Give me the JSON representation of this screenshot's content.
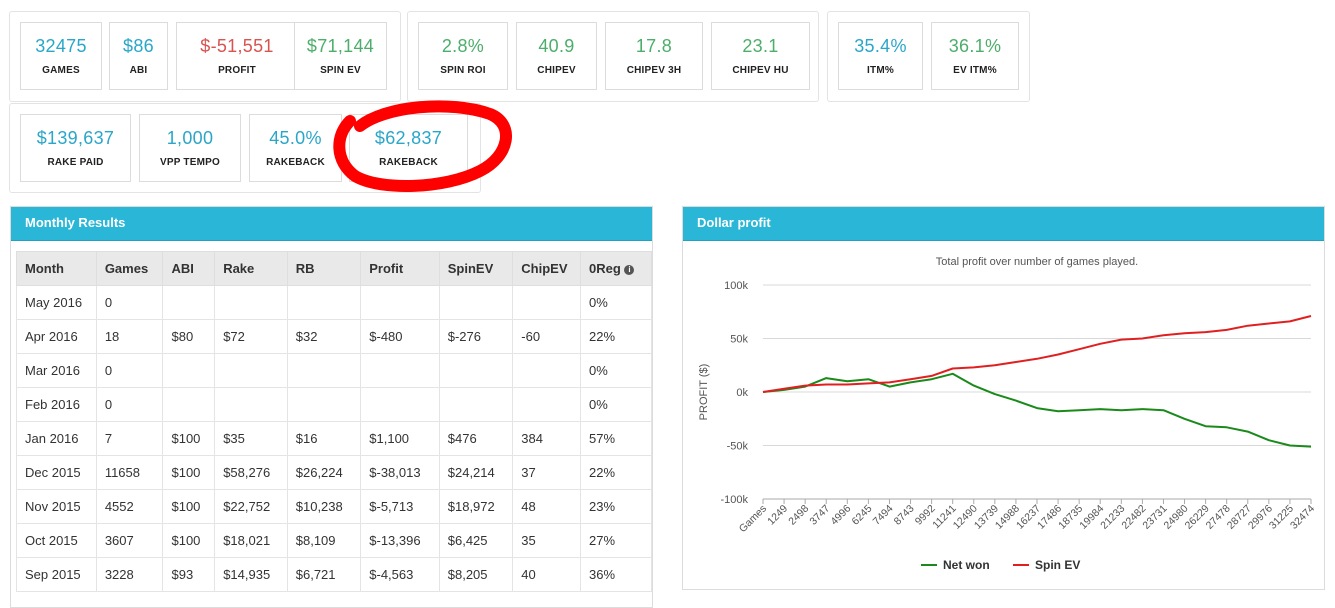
{
  "row1_group1": [
    {
      "value": "32475",
      "label": "GAMES",
      "tone": "blue"
    },
    {
      "value": "$86",
      "label": "ABI",
      "tone": "blue"
    },
    {
      "value": "$-51,551",
      "label": "PROFIT",
      "tone": "red"
    },
    {
      "value": "$71,144",
      "label": "SPIN EV",
      "tone": "green"
    }
  ],
  "row1_group2": [
    {
      "value": "2.8%",
      "label": "SPIN ROI",
      "tone": "green"
    },
    {
      "value": "40.9",
      "label": "CHIPEV",
      "tone": "green"
    },
    {
      "value": "17.8",
      "label": "CHIPEV 3H",
      "tone": "green"
    },
    {
      "value": "23.1",
      "label": "CHIPEV HU",
      "tone": "green"
    }
  ],
  "row1_group3": [
    {
      "value": "35.4%",
      "label": "ITM%",
      "tone": "blue"
    },
    {
      "value": "36.1%",
      "label": "EV ITM%",
      "tone": "green"
    }
  ],
  "row2_group": [
    {
      "value": "$139,637",
      "label": "RAKE PAID",
      "tone": "blue"
    },
    {
      "value": "1,000",
      "label": "VPP TEMPO",
      "tone": "blue"
    },
    {
      "value": "45.0%",
      "label": "RAKEBACK",
      "tone": "blue"
    },
    {
      "value": "$62,837",
      "label": "RAKEBACK",
      "tone": "blue"
    }
  ],
  "monthly": {
    "title": "Monthly Results",
    "columns": [
      "Month",
      "Games",
      "ABI",
      "Rake",
      "RB",
      "Profit",
      "SpinEV",
      "ChipEV",
      "0Reg"
    ],
    "info_glyph": "i",
    "rows": [
      [
        "May 2016",
        "0",
        "",
        "",
        "",
        "",
        "",
        "",
        "0%"
      ],
      [
        "Apr 2016",
        "18",
        "$80",
        "$72",
        "$32",
        "$-480",
        "$-276",
        "-60",
        "22%"
      ],
      [
        "Mar 2016",
        "0",
        "",
        "",
        "",
        "",
        "",
        "",
        "0%"
      ],
      [
        "Feb 2016",
        "0",
        "",
        "",
        "",
        "",
        "",
        "",
        "0%"
      ],
      [
        "Jan 2016",
        "7",
        "$100",
        "$35",
        "$16",
        "$1,100",
        "$476",
        "384",
        "57%"
      ],
      [
        "Dec 2015",
        "11658",
        "$100",
        "$58,276",
        "$26,224",
        "$-38,013",
        "$24,214",
        "37",
        "22%"
      ],
      [
        "Nov 2015",
        "4552",
        "$100",
        "$22,752",
        "$10,238",
        "$-5,713",
        "$18,972",
        "48",
        "23%"
      ],
      [
        "Oct 2015",
        "3607",
        "$100",
        "$18,021",
        "$8,109",
        "$-13,396",
        "$6,425",
        "35",
        "27%"
      ],
      [
        "Sep 2015",
        "3228",
        "$93",
        "$14,935",
        "$6,721",
        "$-4,563",
        "$8,205",
        "40",
        "36%"
      ]
    ]
  },
  "profit_panel": {
    "title": "Dollar profit"
  },
  "chart_data": {
    "type": "line",
    "subtitle": "Total profit over number of games played.",
    "ylabel": "PROFIT ($)",
    "ylim": [
      -100000,
      100000
    ],
    "yticks": [
      100000,
      50000,
      0,
      -50000,
      -100000
    ],
    "ytick_labels": [
      "100k",
      "50k",
      "0k",
      "-50k",
      "-100k"
    ],
    "xtick_labels": [
      "Games",
      "1249",
      "2498",
      "3747",
      "4996",
      "6245",
      "7494",
      "8743",
      "9992",
      "11241",
      "12490",
      "13739",
      "14988",
      "16237",
      "17486",
      "18735",
      "19984",
      "21233",
      "22482",
      "23731",
      "24980",
      "26229",
      "27478",
      "28727",
      "29976",
      "31225",
      "32474"
    ],
    "x": [
      0,
      1249,
      2498,
      3747,
      4996,
      6245,
      7494,
      8743,
      9992,
      11241,
      12490,
      13739,
      14988,
      16237,
      17486,
      18735,
      19984,
      21233,
      22482,
      23731,
      24980,
      26229,
      27478,
      28727,
      29976,
      31225,
      32474
    ],
    "series": [
      {
        "name": "Net won",
        "color": "#1a8a1a",
        "values": [
          0,
          2000,
          5000,
          13000,
          10000,
          12000,
          5000,
          9000,
          12000,
          17000,
          6000,
          -2000,
          -8000,
          -15000,
          -18000,
          -17000,
          -16000,
          -17000,
          -16000,
          -17000,
          -25000,
          -32000,
          -33000,
          -37000,
          -45000,
          -50000,
          -51000
        ]
      },
      {
        "name": "Spin EV",
        "color": "#e02020",
        "values": [
          0,
          3000,
          6000,
          7000,
          7000,
          8000,
          9000,
          12000,
          15000,
          22000,
          23000,
          25000,
          28000,
          31000,
          35000,
          40000,
          45000,
          49000,
          50000,
          53000,
          55000,
          56000,
          58000,
          62000,
          64000,
          66000,
          71000
        ]
      }
    ]
  },
  "colors": {
    "header": "#2ab6d6",
    "annotation": "#ff0000"
  }
}
